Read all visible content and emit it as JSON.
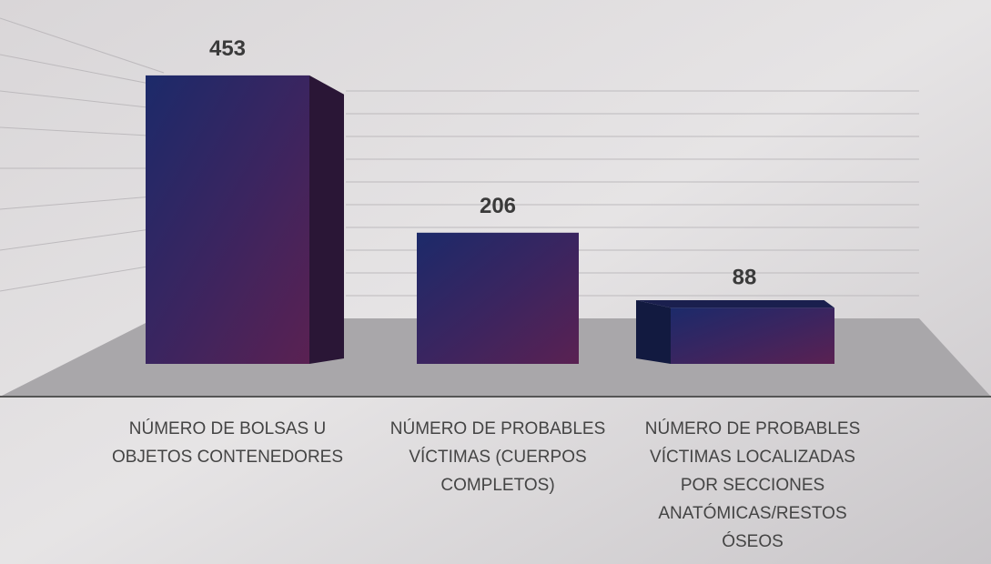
{
  "chart_data": {
    "type": "bar3d",
    "categories": [
      "NÚMERO DE BOLSAS U OBJETOS CONTENEDORES",
      "NÚMERO DE PROBABLES VÍCTIMAS (CUERPOS COMPLETOS)",
      "NÚMERO DE PROBABLES VÍCTIMAS LOCALIZADAS POR SECCIONES ANATÓMICAS/RESTOS ÓSEOS"
    ],
    "values": [
      453,
      206,
      88
    ],
    "ylim": [
      0,
      550
    ]
  }
}
